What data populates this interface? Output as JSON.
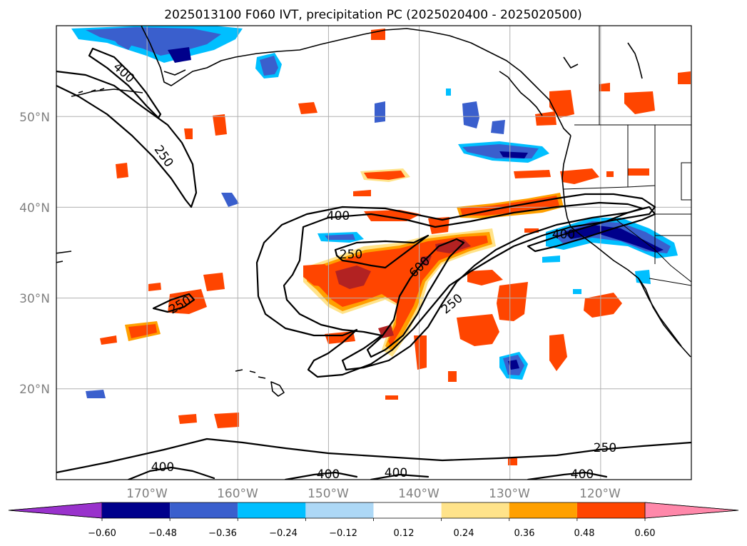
{
  "title": "2025013100 F060 IVT, precipitation PC (2025020400 - 2025020500)",
  "map": {
    "projection": "PlateCarree",
    "lon_range": [
      180,
      -110
    ],
    "lat_range": [
      10,
      60
    ],
    "gridlines": true,
    "lat_ticks": [
      "20°N",
      "30°N",
      "40°N",
      "50°N"
    ],
    "lon_ticks": [
      "170°W",
      "160°W",
      "150°W",
      "140°W",
      "130°W",
      "120°W"
    ],
    "layers": [
      "precipitation PC (filled contours)",
      "IVT (black contours)",
      "coastlines",
      "state borders"
    ]
  },
  "ivt_contours": {
    "levels": [
      250,
      400,
      600
    ],
    "labels": [
      "400",
      "250",
      "250",
      "400",
      "250",
      "600",
      "250",
      "400",
      "250",
      "400",
      "400",
      "400",
      "400"
    ]
  },
  "colorbar": {
    "orientation": "horizontal",
    "extend": "both",
    "tick_labels": [
      "−0.60",
      "−0.48",
      "−0.36",
      "−0.24",
      "−0.12",
      "0.12",
      "0.24",
      "0.36",
      "0.48",
      "0.60"
    ],
    "colors": [
      "#9932cc",
      "#00008b",
      "#3a5fcd",
      "#00bfff",
      "#add8f6",
      "#ffffff",
      "#ffe38a",
      "#ffa000",
      "#ff4500",
      "#b22222",
      "#ff88aa"
    ]
  },
  "chart_data": {
    "type": "heatmap",
    "title": "2025013100 F060 IVT, precipitation PC (2025020400 - 2025020500)",
    "field": "precipitation PC",
    "overlay": "IVT contours",
    "contour_levels": [
      250,
      400,
      600
    ],
    "color_levels": [
      -0.6,
      -0.48,
      -0.36,
      -0.24,
      -0.12,
      0.12,
      0.24,
      0.36,
      0.48,
      0.6
    ],
    "xlim": [
      180,
      -110
    ],
    "ylim": [
      10,
      60
    ],
    "xticks": [
      "170°W",
      "160°W",
      "150°W",
      "140°W",
      "130°W",
      "120°W"
    ],
    "yticks": [
      "20°N",
      "30°N",
      "40°N",
      "50°N"
    ],
    "legend": "colorbar bottom",
    "grid": true
  }
}
